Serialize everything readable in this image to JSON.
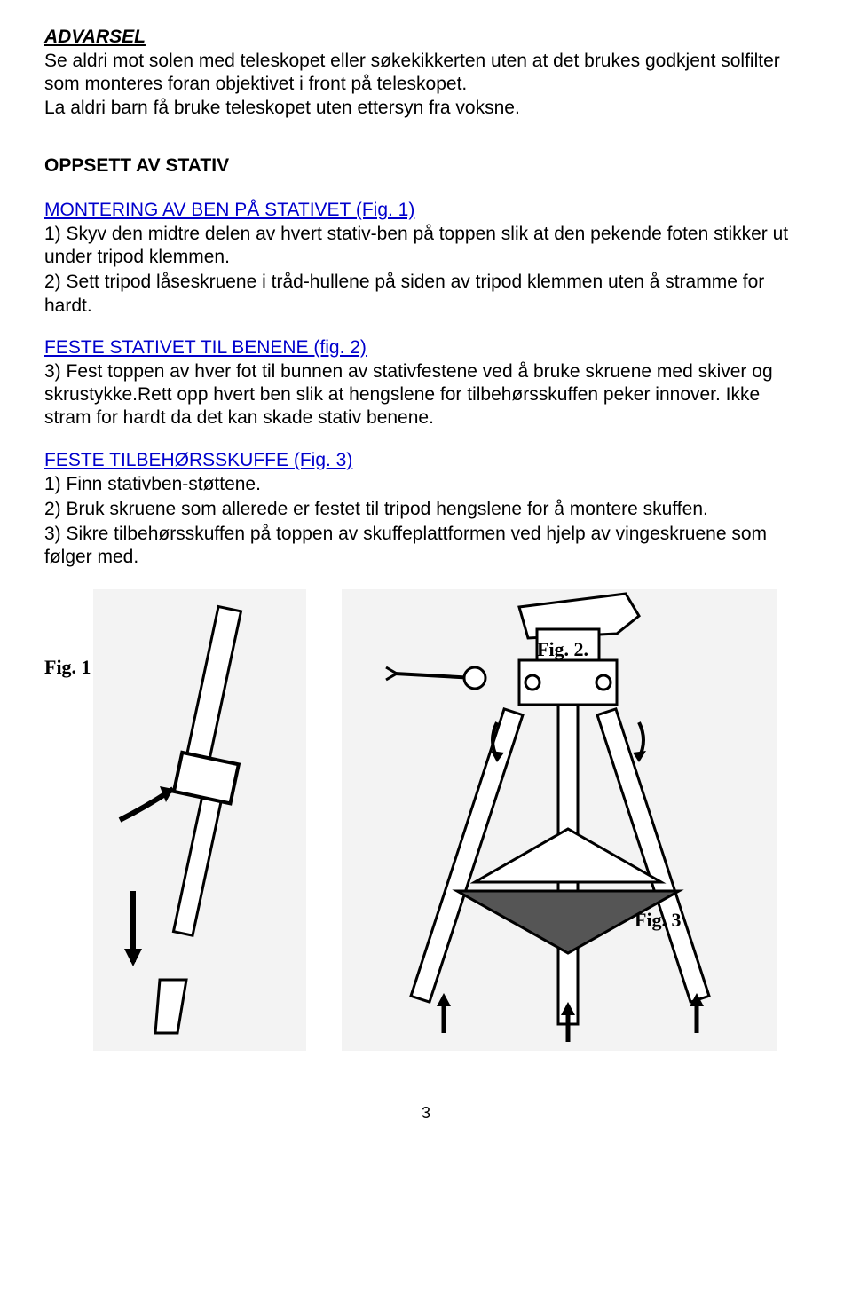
{
  "warning": {
    "title": "ADVARSEL",
    "text": "Se aldri mot solen med teleskopet eller søkekikkerten uten at det brukes godkjent solfilter som monteres foran objektivet i front på teleskopet.\nLa aldri barn få bruke teleskopet uten ettersyn fra voksne."
  },
  "section_title": "OPPSETT AV STATIV",
  "sub1": {
    "heading": "MONTERING AV BEN PÅ STATIVET (Fig. 1)",
    "p1": "1) Skyv den midtre delen av hvert stativ-ben på toppen slik at den pekende foten stikker ut under tripod klemmen.",
    "p2": "2) Sett tripod låseskruene i tråd-hullene på siden av tripod klemmen uten å stramme for hardt."
  },
  "sub2": {
    "heading": "FESTE STATIVET TIL BENENE (fig. 2)",
    "p1": "3) Fest toppen av hver fot til bunnen av stativfestene ved å bruke skruene med skiver og skrustykke.Rett opp hvert ben slik at hengslene for tilbehørsskuffen peker innover. Ikke stram for hardt da det kan skade stativ benene."
  },
  "sub3": {
    "heading": "FESTE TILBEHØRSSKUFFE (Fig. 3)",
    "p1": "1) Finn stativben-støttene.",
    "p2": "2) Bruk skruene som allerede er festet til tripod hengslene for å montere skuffen.",
    "p3": "3) Sikre tilbehørsskuffen på toppen av skuffeplattformen ved hjelp av vingeskruene som følger med."
  },
  "fig1_label": "Fig. 1",
  "fig2_label": "Fig. 2.",
  "fig3_label": "Fig. 3",
  "page_number": "3",
  "colors": {
    "link_blue": "#0000cc",
    "fig_bg": "#f3f3f3",
    "text": "#000000",
    "page_bg": "#ffffff"
  }
}
